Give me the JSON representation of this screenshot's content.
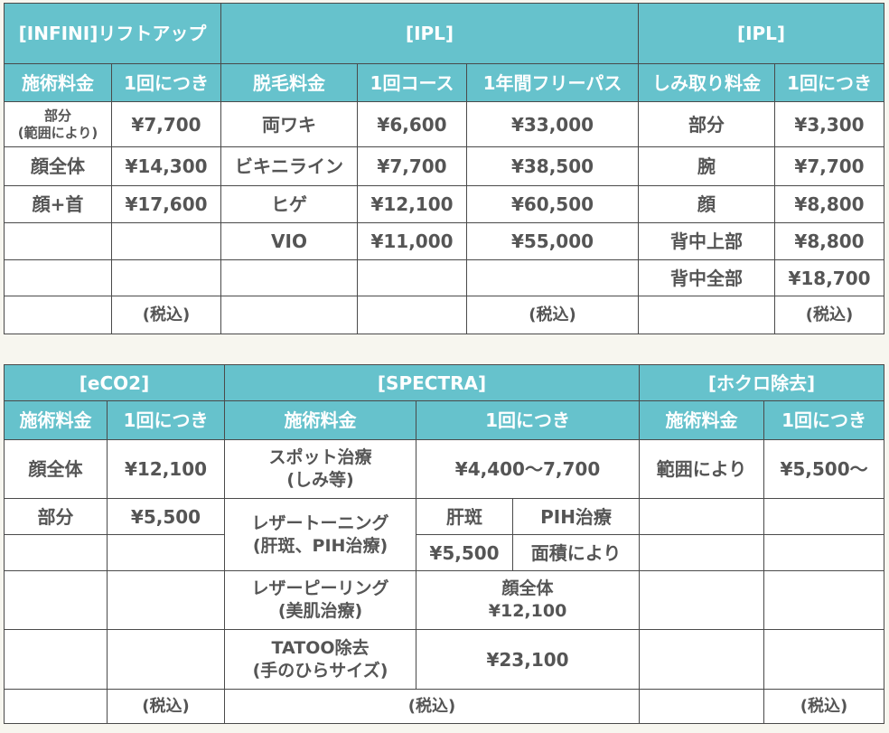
{
  "table_top": {
    "groups": [
      {
        "title": "[INFINI]リフトアップ"
      },
      {
        "title": "[IPL]"
      },
      {
        "title": "[IPL]"
      }
    ],
    "headers": [
      "施術料金",
      "1回につき",
      "脱毛料金",
      "1回コース",
      "1年間フリーパス",
      "しみ取り料金",
      "1回につき"
    ],
    "infini": [
      {
        "area": "部分\n(範囲により)",
        "price": "¥7,700"
      },
      {
        "area": "顔全体",
        "price": "¥14,300"
      },
      {
        "area": "顔+首",
        "price": "¥17,600"
      }
    ],
    "ipl_hair": [
      {
        "area": "両ワキ",
        "once": "¥6,600",
        "year": "¥33,000"
      },
      {
        "area": "ビキニライン",
        "once": "¥7,700",
        "year": "¥38,500"
      },
      {
        "area": "ヒゲ",
        "once": "¥12,100",
        "year": "¥60,500"
      },
      {
        "area": "VIO",
        "once": "¥11,000",
        "year": "¥55,000"
      }
    ],
    "ipl_spot": [
      {
        "area": "部分",
        "price": "¥3,300"
      },
      {
        "area": "腕",
        "price": "¥7,700"
      },
      {
        "area": "顔",
        "price": "¥8,800"
      },
      {
        "area": "背中上部",
        "price": "¥8,800"
      },
      {
        "area": "背中全部",
        "price": "¥18,700"
      }
    ],
    "tax_note": "(税込)"
  },
  "table_bottom": {
    "groups": [
      {
        "title": "[eCO2]"
      },
      {
        "title": "[SPECTRA]"
      },
      {
        "title": "[ホクロ除去]"
      }
    ],
    "headers": [
      "施術料金",
      "1回につき",
      "施術料金",
      "1回につき",
      "施術料金",
      "1回につき"
    ],
    "eco2": [
      {
        "area": "顔全体",
        "price": "¥12,100"
      },
      {
        "area": "部分",
        "price": "¥5,500"
      }
    ],
    "spectra": {
      "spot": {
        "name_line1": "スポット治療",
        "name_line2": "(しみ等)",
        "price": "¥4,400〜7,700"
      },
      "toning": {
        "name_line1": "レザートーニング",
        "name_line2": "(肝斑、PIH治療)",
        "sub1_label": "肝斑",
        "sub2_label": "PIH治療",
        "sub1_price": "¥5,500",
        "sub2_price": "面積により"
      },
      "peeling": {
        "name_line1": "レザーピーリング",
        "name_line2": "(美肌治療)",
        "price_line1": "顔全体",
        "price_line2": "¥12,100"
      },
      "tatoo": {
        "name_line1": "TATOO除去",
        "name_line2": "(手のひらサイズ)",
        "price": "¥23,100"
      }
    },
    "mole": {
      "area": "範囲により",
      "price": "¥5,500〜"
    },
    "tax_note": "(税込)"
  },
  "colors": {
    "header_bg": "#66c2cc",
    "header_text": "#ffffff",
    "body_text": "#555555",
    "border": "#4a4a4a",
    "page_bg": "#f7f6ef"
  }
}
